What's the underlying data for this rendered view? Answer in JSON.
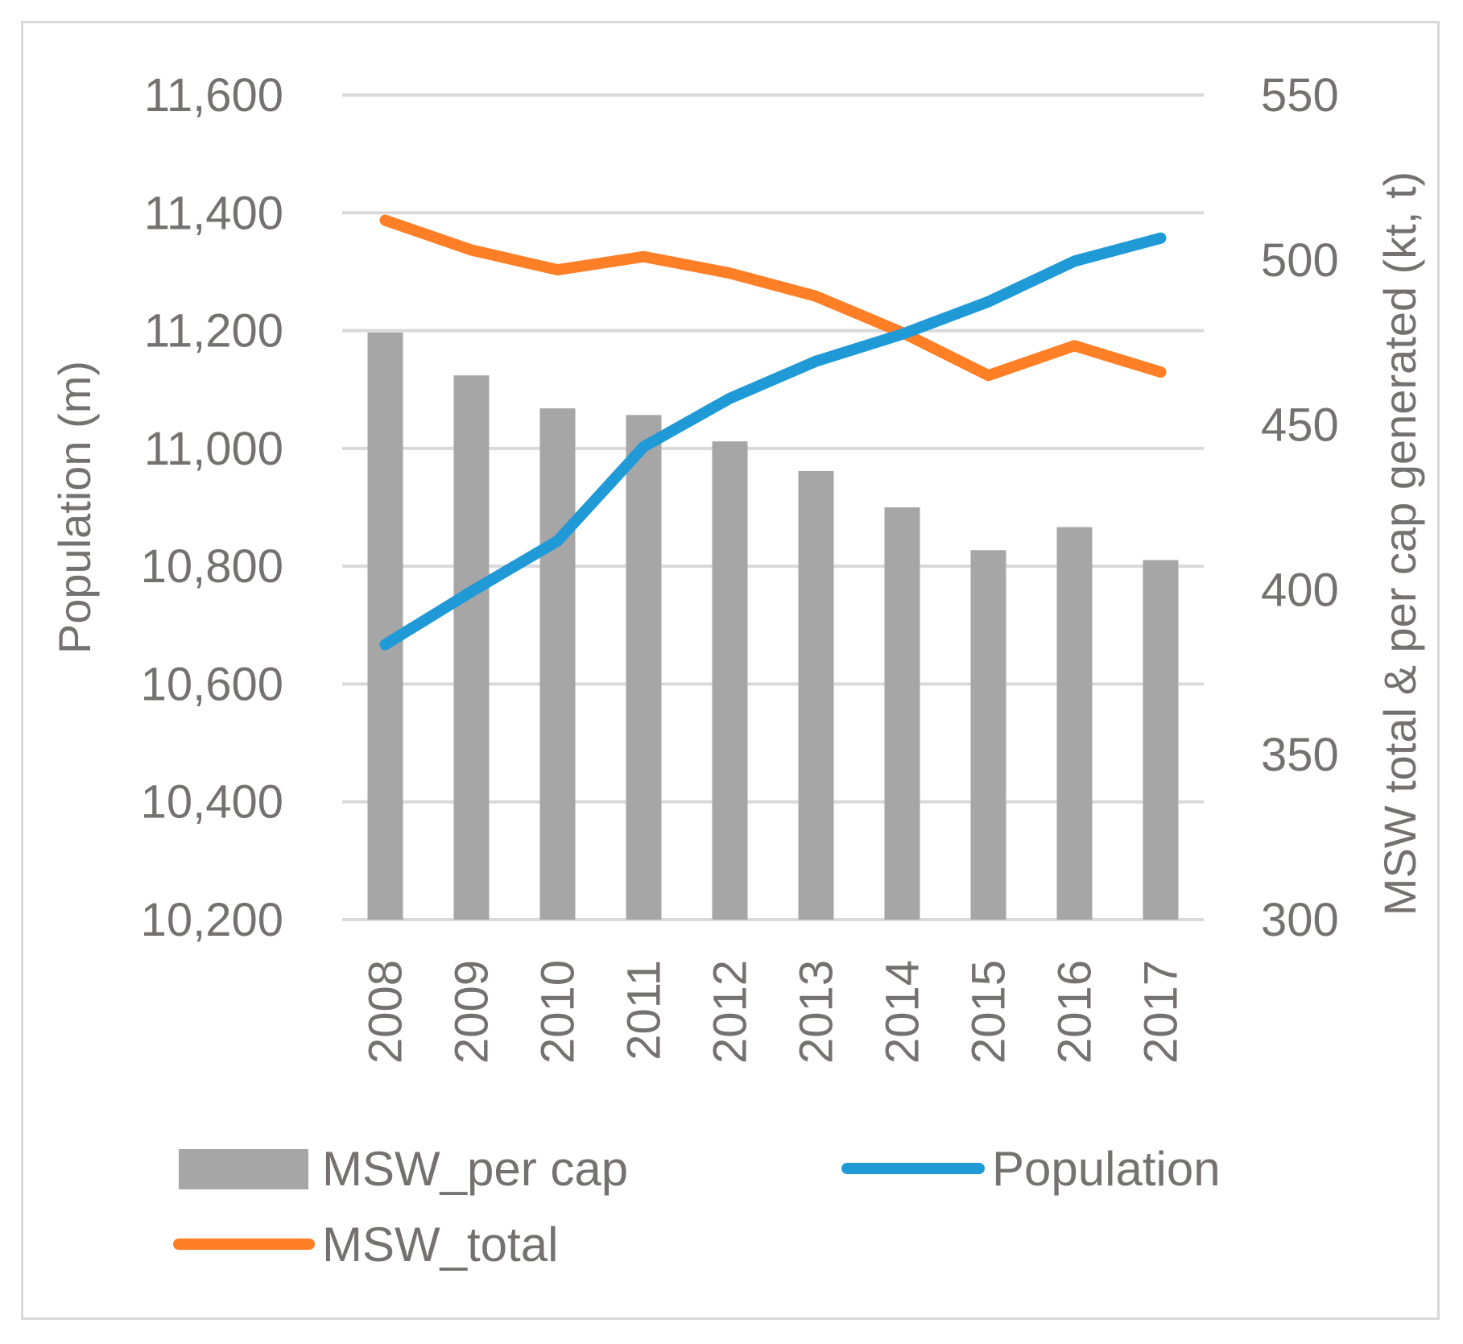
{
  "chart_data": {
    "type": "bar",
    "categories": [
      "2008",
      "2009",
      "2010",
      "2011",
      "2012",
      "2013",
      "2014",
      "2015",
      "2016",
      "2017"
    ],
    "left_axis": {
      "label": "Population (m)",
      "ylim": [
        10200,
        11600
      ],
      "ticks": [
        "10,200",
        "10,400",
        "10,600",
        "10,800",
        "11,000",
        "11,200",
        "11,400",
        "11,600"
      ],
      "tick_values": [
        10200,
        10400,
        10600,
        10800,
        11000,
        11200,
        11400,
        11600
      ]
    },
    "right_axis": {
      "label": "MSW total & per cap generated (kt, t)",
      "ylim": [
        300,
        550
      ],
      "ticks": [
        "300",
        "350",
        "400",
        "450",
        "500",
        "550"
      ],
      "tick_values": [
        300,
        350,
        400,
        450,
        500,
        550
      ]
    },
    "series": [
      {
        "name": "MSW_per cap",
        "type": "bar",
        "axis": "right",
        "color": "#a6a6a6",
        "values": [
          478,
          465,
          455,
          453,
          445,
          436,
          425,
          412,
          419,
          409
        ]
      },
      {
        "name": "Population",
        "type": "line",
        "axis": "left",
        "color": "#1f9ad6",
        "values": [
          10667,
          10757,
          10843,
          11003,
          11085,
          11148,
          11194,
          11249,
          11318,
          11357
        ]
      },
      {
        "name": "MSW_total",
        "type": "line",
        "axis": "right",
        "color": "#ff7f27",
        "values": [
          512,
          503,
          497,
          501,
          496,
          489,
          478,
          465,
          474,
          466
        ]
      }
    ],
    "grid": true,
    "legend_position": "bottom"
  }
}
